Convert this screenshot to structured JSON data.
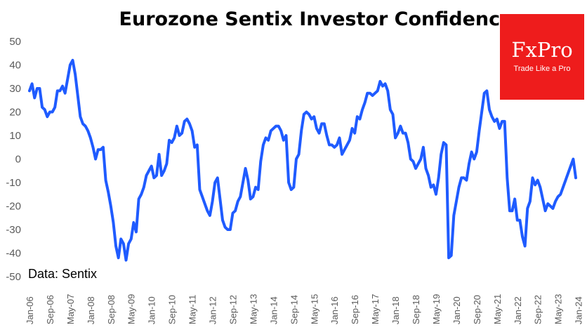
{
  "chart_data": {
    "type": "line",
    "title": "Eurozone Sentix Investor Confidence",
    "source_note": "Data: Sentix",
    "ylim": [
      -50,
      50
    ],
    "yticks": [
      50,
      40,
      30,
      20,
      10,
      0,
      -10,
      -20,
      -30,
      -40,
      -50
    ],
    "xticks": [
      "Jan-06",
      "Sep-06",
      "May-07",
      "Jan-08",
      "Sep-08",
      "May-09",
      "Jan-10",
      "Sep-10",
      "May-11",
      "Jan-12",
      "Sep-12",
      "May-13",
      "Jan-14",
      "Sep-14",
      "May-15",
      "Jan-16",
      "Sep-16",
      "May-17",
      "Jan-18",
      "Sep-18",
      "May-19",
      "Jan-20",
      "Sep-20",
      "May-21",
      "Jan-22",
      "Sep-22",
      "May-23",
      "Jan-24"
    ],
    "grid": false,
    "legend": "none",
    "line_color": "#1f5bff",
    "series": [
      {
        "values": [
          29,
          32,
          26,
          30,
          30,
          22,
          21,
          18,
          20,
          20,
          22,
          29,
          29,
          31,
          28,
          34,
          40,
          42,
          36,
          27,
          18,
          15,
          14,
          12,
          9,
          5,
          0,
          4,
          4,
          5,
          -9,
          -14,
          -20,
          -27,
          -37,
          -42,
          -34,
          -36,
          -43,
          -36,
          -34,
          -27,
          -31,
          -17,
          -15,
          -12,
          -7,
          -5,
          -3,
          -8,
          -7,
          2,
          -7,
          -5,
          -2,
          8,
          7,
          9,
          14,
          10,
          11,
          16,
          17,
          15,
          12,
          5,
          6,
          -13,
          -16,
          -19,
          -22,
          -24,
          -18,
          -10,
          -8,
          -17,
          -26,
          -29,
          -30,
          -30,
          -23,
          -22,
          -18,
          -16,
          -10,
          -4,
          -9,
          -17,
          -16,
          -12,
          -13,
          -1,
          6,
          9,
          8,
          12,
          13,
          14,
          14,
          12,
          8,
          10,
          -10,
          -13,
          -12,
          0,
          2,
          12,
          19,
          20,
          19,
          17,
          18,
          13,
          11,
          15,
          15,
          10,
          6,
          6,
          5,
          6,
          9,
          2,
          4,
          6,
          8,
          13,
          11,
          18,
          17,
          21,
          24,
          28,
          28,
          27,
          28,
          29,
          33,
          31,
          32,
          29,
          21,
          19,
          9,
          11,
          14,
          11,
          11,
          7,
          0,
          -1,
          -4,
          -2,
          0,
          5,
          -4,
          -7,
          -12,
          -11,
          -15,
          -8,
          2,
          7,
          6,
          -42,
          -41,
          -24,
          -18,
          -12,
          -8,
          -8,
          -9,
          -2,
          3,
          0,
          3,
          12,
          20,
          28,
          29,
          21,
          18,
          16,
          17,
          13,
          16,
          16,
          -8,
          -22,
          -22,
          -17,
          -26,
          -26,
          -33,
          -37,
          -21,
          -18,
          -8,
          -11,
          -9,
          -12,
          -17,
          -22,
          -19,
          -20,
          -21,
          -18,
          -16,
          -15,
          -12,
          -9,
          -6,
          -3,
          0,
          -8
        ]
      }
    ]
  },
  "logo": {
    "brand": "FxPro",
    "tagline": "Trade Like a Pro"
  }
}
